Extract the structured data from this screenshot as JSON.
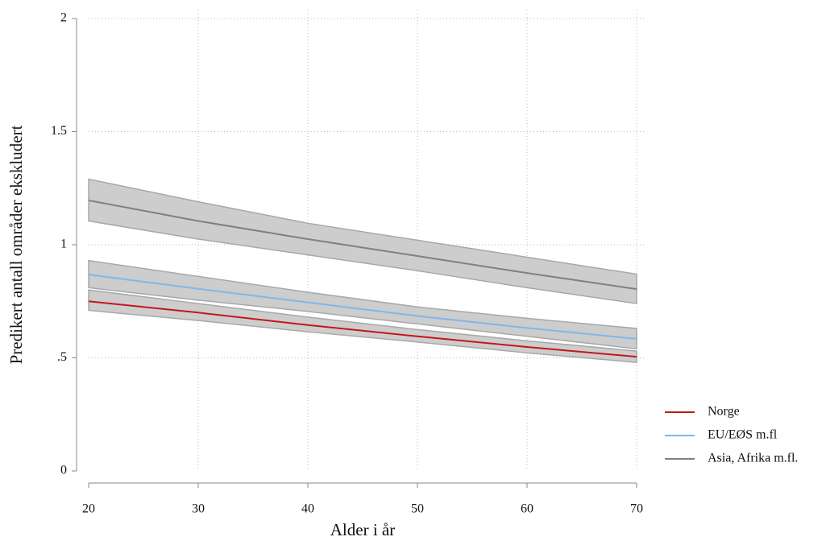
{
  "chart_data": {
    "type": "line",
    "xlabel": "Alder i år",
    "ylabel": "Predikert antall områder ekskludert",
    "x": [
      20,
      30,
      40,
      50,
      60,
      70
    ],
    "xlim": [
      20,
      70
    ],
    "xticks": [
      20,
      30,
      40,
      50,
      60,
      70
    ],
    "ylim": [
      0,
      2
    ],
    "yticks": [
      0,
      {
        "value": 0.5,
        "label": ".5"
      },
      1,
      1.5,
      2
    ],
    "grid": true,
    "legend": "right",
    "band_color": "#c8c8c8",
    "series": [
      {
        "name": "Norge",
        "color": "#c4161c",
        "values": [
          0.75,
          0.7,
          0.645,
          0.595,
          0.548,
          0.505
        ],
        "lower": [
          0.71,
          0.665,
          0.615,
          0.57,
          0.522,
          0.48
        ],
        "upper": [
          0.8,
          0.74,
          0.68,
          0.625,
          0.575,
          0.53
        ]
      },
      {
        "name": "EU/EØS m.fl",
        "color": "#7fb8e8",
        "values": [
          0.868,
          0.805,
          0.745,
          0.685,
          0.632,
          0.584
        ],
        "lower": [
          0.81,
          0.755,
          0.705,
          0.65,
          0.595,
          0.54
        ],
        "upper": [
          0.93,
          0.86,
          0.79,
          0.725,
          0.675,
          0.63
        ]
      },
      {
        "name": "Asia, Afrika m.fl.",
        "color": "#808080",
        "values": [
          1.196,
          1.105,
          1.025,
          0.95,
          0.875,
          0.804
        ],
        "lower": [
          1.105,
          1.025,
          0.955,
          0.885,
          0.81,
          0.74
        ],
        "upper": [
          1.29,
          1.19,
          1.095,
          1.02,
          0.945,
          0.87
        ]
      }
    ]
  }
}
